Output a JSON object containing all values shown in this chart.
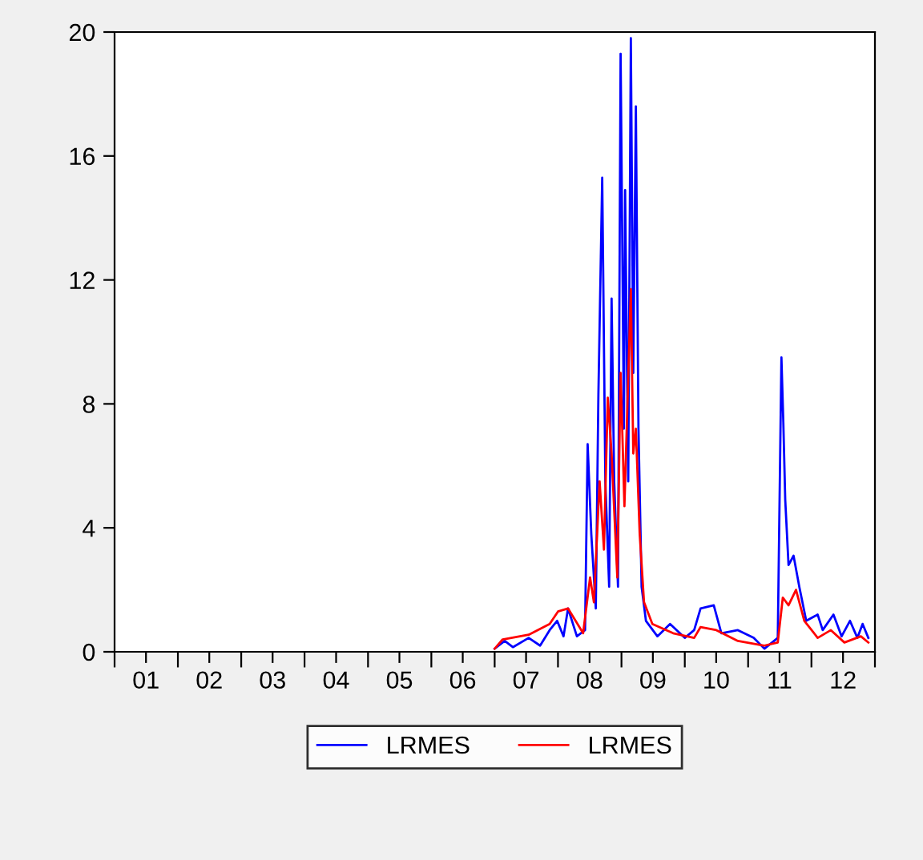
{
  "chart_data": {
    "type": "line",
    "xlim": [
      "2001-01-01",
      "2013-01-01"
    ],
    "xticks": [
      {
        "value": "2001-01-01",
        "label": null
      },
      {
        "value": "2001-07-01",
        "label": "01"
      },
      {
        "value": "2002-01-01",
        "label": null
      },
      {
        "value": "2002-07-01",
        "label": "02"
      },
      {
        "value": "2003-01-01",
        "label": null
      },
      {
        "value": "2003-07-01",
        "label": "03"
      },
      {
        "value": "2004-01-01",
        "label": null
      },
      {
        "value": "2004-07-01",
        "label": "04"
      },
      {
        "value": "2005-01-01",
        "label": null
      },
      {
        "value": "2005-07-01",
        "label": "05"
      },
      {
        "value": "2006-01-01",
        "label": null
      },
      {
        "value": "2006-07-01",
        "label": "06"
      },
      {
        "value": "2007-01-01",
        "label": null
      },
      {
        "value": "2007-07-01",
        "label": "07"
      },
      {
        "value": "2008-01-01",
        "label": null
      },
      {
        "value": "2008-07-01",
        "label": "08"
      },
      {
        "value": "2009-01-01",
        "label": null
      },
      {
        "value": "2009-07-01",
        "label": "09"
      },
      {
        "value": "2010-01-01",
        "label": null
      },
      {
        "value": "2010-07-01",
        "label": "10"
      },
      {
        "value": "2011-01-01",
        "label": null
      },
      {
        "value": "2011-07-01",
        "label": "11"
      },
      {
        "value": "2012-01-01",
        "label": null
      },
      {
        "value": "2012-07-01",
        "label": "12"
      },
      {
        "value": "2013-01-01",
        "label": null
      }
    ],
    "ylim": [
      0,
      20
    ],
    "yticks": [
      0,
      4,
      8,
      12,
      16,
      20
    ],
    "grid": false,
    "legend": "bottom",
    "marker": "none",
    "line_style": "solid",
    "series": [
      {
        "name": "LRMES",
        "color": "#0000ff",
        "x": [
          "2007-01-01",
          "2007-02-28",
          "2007-04-16",
          "2007-07-16",
          "2007-09-20",
          "2007-11-14",
          "2007-12-27",
          "2008-02-02",
          "2008-02-28",
          "2008-04-19",
          "2008-06-05",
          "2008-06-20",
          "2008-07-11",
          "2008-08-06",
          "2008-08-21",
          "2008-09-12",
          "2008-09-30",
          "2008-10-22",
          "2008-11-05",
          "2008-11-20",
          "2008-12-12",
          "2008-12-27",
          "2009-01-15",
          "2009-01-22",
          "2009-02-09",
          "2009-02-24",
          "2009-03-10",
          "2009-03-25",
          "2009-04-09",
          "2009-04-27",
          "2009-05-22",
          "2009-07-27",
          "2009-10-08",
          "2010-01-01",
          "2010-02-24",
          "2010-04-02",
          "2010-06-17",
          "2010-07-31",
          "2010-11-03",
          "2011-02-02",
          "2011-04-05",
          "2011-06-21",
          "2011-07-12",
          "2011-07-23",
          "2011-08-03",
          "2011-08-22",
          "2011-09-20",
          "2011-10-23",
          "2011-12-02",
          "2012-02-06",
          "2012-03-06",
          "2012-05-07",
          "2012-06-23",
          "2012-08-10",
          "2012-09-22",
          "2012-10-22",
          "2012-11-24"
        ],
        "values": [
          0.1,
          0.35,
          0.15,
          0.45,
          0.2,
          0.7,
          1.0,
          0.5,
          1.4,
          0.5,
          0.7,
          6.7,
          3.8,
          1.4,
          8.3,
          15.3,
          5.5,
          2.1,
          11.4,
          5.5,
          2.1,
          19.3,
          7.2,
          14.9,
          5.5,
          19.8,
          9.0,
          17.6,
          7.2,
          2.1,
          1.0,
          0.5,
          0.9,
          0.45,
          0.7,
          1.4,
          1.5,
          0.6,
          0.7,
          0.45,
          0.1,
          0.45,
          9.5,
          7.4,
          4.9,
          2.8,
          3.1,
          2.1,
          1.0,
          1.2,
          0.7,
          1.2,
          0.5,
          1.0,
          0.45,
          0.9,
          0.45
        ]
      },
      {
        "name": "LRMES",
        "color": "#ff0000",
        "x": [
          "2007-01-01",
          "2007-02-16",
          "2007-07-16",
          "2007-11-14",
          "2008-01-01",
          "2008-02-28",
          "2008-05-25",
          "2008-07-04",
          "2008-07-26",
          "2008-08-28",
          "2008-09-22",
          "2008-10-14",
          "2008-11-05",
          "2008-12-08",
          "2008-12-27",
          "2009-01-18",
          "2009-02-24",
          "2009-03-10",
          "2009-03-25",
          "2009-04-16",
          "2009-05-11",
          "2009-06-28",
          "2009-10-26",
          "2010-02-24",
          "2010-04-02",
          "2010-07-02",
          "2010-11-03",
          "2011-04-05",
          "2011-06-21",
          "2011-07-20",
          "2011-08-22",
          "2011-10-04",
          "2011-11-21",
          "2012-02-06",
          "2012-04-22",
          "2012-07-09",
          "2012-10-12",
          "2012-11-24"
        ],
        "values": [
          0.1,
          0.4,
          0.55,
          0.9,
          1.3,
          1.4,
          0.6,
          2.4,
          1.6,
          5.5,
          3.3,
          8.2,
          6.4,
          2.4,
          9.0,
          4.7,
          11.7,
          6.4,
          7.2,
          3.8,
          1.6,
          0.9,
          0.6,
          0.45,
          0.8,
          0.7,
          0.35,
          0.2,
          0.3,
          1.75,
          1.5,
          2.0,
          1.0,
          0.45,
          0.7,
          0.3,
          0.5,
          0.3
        ]
      }
    ]
  }
}
